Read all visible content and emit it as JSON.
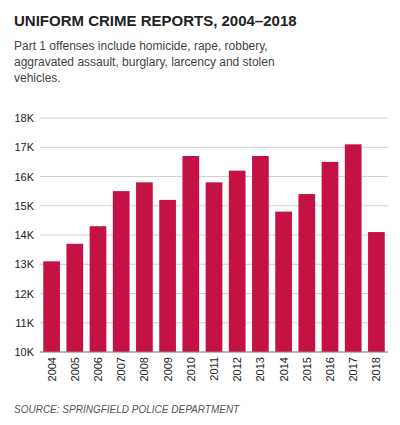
{
  "chart_data": {
    "type": "bar",
    "title": "UNIFORM CRIME REPORTS, 2004–2018",
    "subtitle": "Part 1 offenses include homicide, rape, robbery,\naggravated assault, burglary, larcency and stolen\nvehicles.",
    "source": "SOURCE: SPRINGFIELD POLICE DEPARTMENT",
    "categories": [
      "2004",
      "2005",
      "2006",
      "2007",
      "2008",
      "2009",
      "2010",
      "2011",
      "2012",
      "2013",
      "2014",
      "2015",
      "2016",
      "2017",
      "2018"
    ],
    "values": [
      13100,
      13700,
      14300,
      15500,
      15800,
      15200,
      16700,
      15800,
      16200,
      16700,
      14800,
      15400,
      16500,
      17100,
      14100
    ],
    "color": "#C41245",
    "ylim": [
      10000,
      18000
    ],
    "yticks": [
      {
        "value": 10000,
        "label": "10K"
      },
      {
        "value": 11000,
        "label": "11K"
      },
      {
        "value": 12000,
        "label": "12K"
      },
      {
        "value": 13000,
        "label": "13K"
      },
      {
        "value": 14000,
        "label": "14K"
      },
      {
        "value": 15000,
        "label": "15K"
      },
      {
        "value": 16000,
        "label": "16K"
      },
      {
        "value": 17000,
        "label": "17K"
      },
      {
        "value": 18000,
        "label": "18K"
      }
    ],
    "grid": true
  }
}
